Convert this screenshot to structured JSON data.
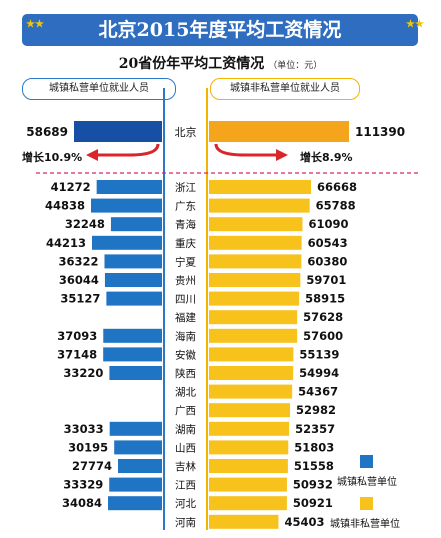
{
  "page": {
    "title": "北京2015年度平均工资情况",
    "subtitle": "20省份年平均工资情况",
    "unit": "（单位：元）",
    "left_header": "城镇私营单位就业人员",
    "right_header": "城镇非私营单位就业人员"
  },
  "chart_data": {
    "type": "bar",
    "title": "北京2015年度平均工资情况",
    "subtitle": "20省份年平均工资情况",
    "unit": "（单位：元）",
    "layout": "butterfly",
    "legend_position": "bottom-right",
    "highlight": {
      "category": "北京",
      "left_value": 58689,
      "right_value": 111390,
      "left_growth": "增长10.9%",
      "right_growth": "增长8.9%"
    },
    "categories": [
      "浙江",
      "广东",
      "青海",
      "重庆",
      "宁夏",
      "贵州",
      "四川",
      "福建",
      "海南",
      "安徽",
      "陕西",
      "湖北",
      "广西",
      "湖南",
      "山西",
      "吉林",
      "江西",
      "河北",
      "河南"
    ],
    "series": [
      {
        "name": "城镇私营单位",
        "color": "#1f74c4",
        "values": [
          41272,
          44838,
          32248,
          44213,
          36322,
          36044,
          35127,
          null,
          37093,
          37148,
          33220,
          null,
          null,
          33033,
          30195,
          27774,
          33329,
          34084,
          null
        ]
      },
      {
        "name": "城镇非私营单位",
        "color": "#f7c21c",
        "values": [
          66668,
          65788,
          61090,
          60543,
          60380,
          59701,
          58915,
          57628,
          57600,
          55139,
          54994,
          54367,
          52982,
          52357,
          51803,
          51558,
          50932,
          50921,
          45403
        ]
      }
    ],
    "colors": {
      "private_bar": "#1f74c4",
      "private_highlight": "#164fa3",
      "nonprivate_bar": "#f7c21c",
      "nonprivate_highlight": "#f4a51c",
      "arrow": "#d9262b",
      "center_line_left": "#2a78c8",
      "center_line_right": "#f2b400",
      "divider": "#d6266e"
    }
  }
}
